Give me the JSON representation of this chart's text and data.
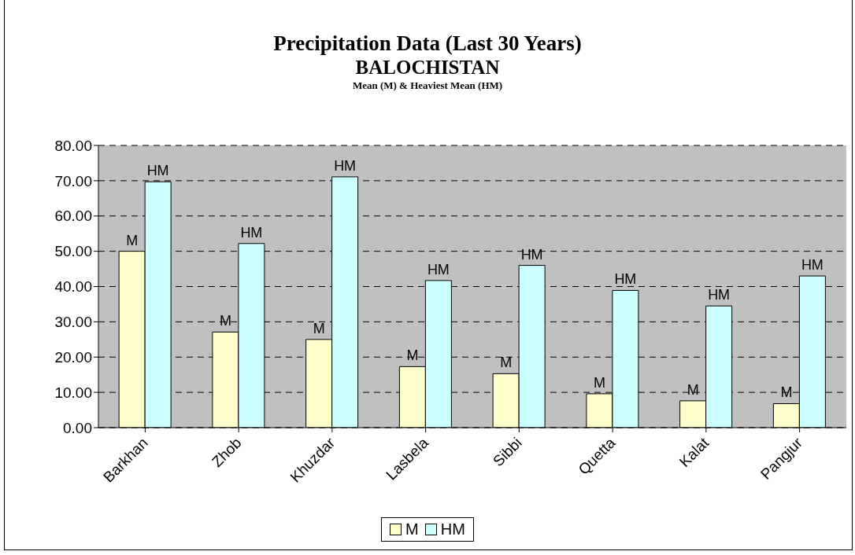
{
  "chart_data": {
    "type": "bar",
    "title": "Precipitation Data (Last 30 Years)",
    "subtitle": "BALOCHISTAN",
    "annotations": [
      "Mean (M) & Heaviest Mean (HM)"
    ],
    "categories": [
      "Barkhan",
      "Zhob",
      "Khuzdar",
      "Lasbela",
      "Sibbi",
      "Quetta",
      "Kalat",
      "Pangjur"
    ],
    "series": [
      {
        "name": "M",
        "color": "#ffffcc",
        "values": [
          50.0,
          27.1,
          25.0,
          17.3,
          15.3,
          9.6,
          7.6,
          6.8
        ],
        "value_labels": [
          "M",
          "M",
          "M",
          "M",
          "M",
          "M",
          "M",
          "M"
        ]
      },
      {
        "name": "HM",
        "color": "#ccffff",
        "values": [
          69.7,
          52.2,
          71.1,
          41.7,
          46.0,
          38.9,
          34.5,
          43.0
        ],
        "value_labels": [
          "HM",
          "HM",
          "HM",
          "HM",
          "HM",
          "HM",
          "HM",
          "HM"
        ]
      }
    ],
    "ylim": [
      0,
      80
    ],
    "yticks": [
      {
        "value": 0,
        "label": "0.00"
      },
      {
        "value": 10,
        "label": "10.00"
      },
      {
        "value": 20,
        "label": "20.00"
      },
      {
        "value": 30,
        "label": "30.00"
      },
      {
        "value": 40,
        "label": "40.00"
      },
      {
        "value": 50,
        "label": "50.00"
      },
      {
        "value": 60,
        "label": "60.00"
      },
      {
        "value": 70,
        "label": "70.00"
      },
      {
        "value": 80,
        "label": "80.00"
      }
    ],
    "grid": "y",
    "legend": "bottom"
  }
}
